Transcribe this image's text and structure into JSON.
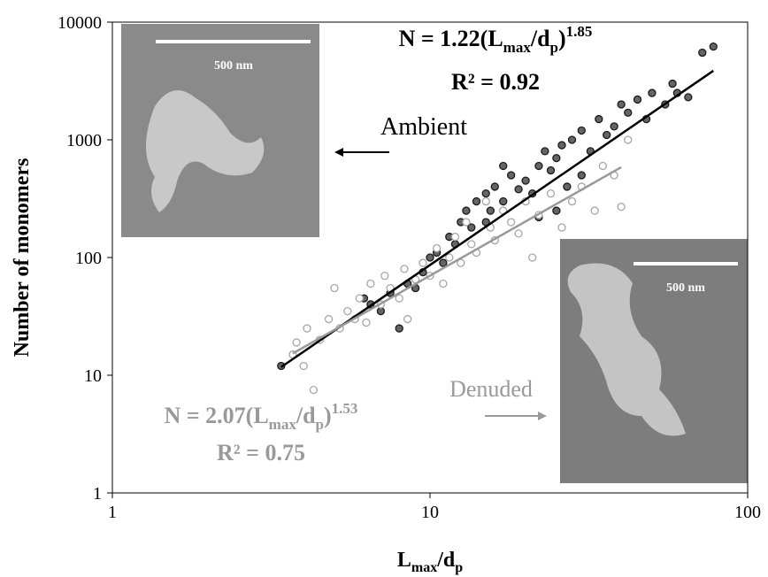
{
  "chart_data": {
    "type": "scatter",
    "y_label": "Number of monomers",
    "x_label": [
      "L",
      "max",
      "/d",
      "p"
    ],
    "log_x": true,
    "log_y": true,
    "xlim": [
      1,
      100
    ],
    "xticks": [
      1,
      10,
      100
    ],
    "ylim": [
      1,
      10000
    ],
    "yticks": [
      1,
      10,
      100,
      1000,
      10000
    ],
    "series": [
      {
        "name": "Ambient",
        "color": "#4a4a4a",
        "x": [
          3.4,
          6.2,
          6.5,
          7,
          7.5,
          8,
          8.5,
          9,
          9.5,
          10,
          10.5,
          11,
          11.5,
          12,
          12.5,
          13,
          13.5,
          14,
          15,
          15.5,
          16,
          17,
          18,
          19,
          20,
          21,
          22,
          23,
          24,
          25,
          26,
          27,
          28,
          30,
          32,
          34,
          36,
          38,
          40,
          42,
          45,
          48,
          50,
          55,
          58,
          60,
          65,
          72,
          78,
          25,
          22,
          30,
          17,
          15
        ],
        "values": [
          12,
          45,
          40,
          35,
          50,
          25,
          60,
          55,
          75,
          100,
          110,
          90,
          150,
          130,
          200,
          250,
          180,
          300,
          350,
          250,
          400,
          300,
          500,
          380,
          450,
          350,
          600,
          800,
          550,
          700,
          900,
          400,
          1000,
          1200,
          800,
          1500,
          1100,
          1300,
          2000,
          1700,
          2200,
          1500,
          2500,
          2000,
          3000,
          2500,
          2300,
          5500,
          6200,
          250,
          220,
          500,
          600,
          200
        ]
      },
      {
        "name": "Denuded",
        "color": "#a6a6a6",
        "x": [
          3.7,
          3.8,
          4,
          4.1,
          4.3,
          4.5,
          4.8,
          5,
          5.2,
          5.5,
          5.8,
          6,
          6.3,
          6.5,
          7,
          7.2,
          7.5,
          8,
          8.3,
          8.5,
          9,
          9.5,
          10,
          10.5,
          11,
          11.5,
          12,
          12.5,
          13,
          13.5,
          14,
          15,
          15.5,
          16,
          17,
          18,
          19,
          20,
          21,
          22,
          24,
          26,
          28,
          30,
          33,
          35,
          38,
          40,
          42
        ],
        "values": [
          15,
          19,
          12,
          25,
          7.5,
          20,
          30,
          55,
          25,
          35,
          30,
          45,
          28,
          60,
          40,
          70,
          55,
          45,
          80,
          30,
          65,
          90,
          70,
          120,
          60,
          100,
          150,
          90,
          200,
          130,
          110,
          300,
          180,
          140,
          250,
          200,
          160,
          300,
          100,
          230,
          350,
          180,
          300,
          400,
          250,
          600,
          500,
          270,
          1000
        ]
      }
    ],
    "equation": [
      "N = ",
      "(L",
      "max",
      "/d",
      "p",
      ")"
    ],
    "r2_label": "R² = ",
    "fits": [
      {
        "a": 1.22,
        "b": 1.85,
        "r2": 0.92,
        "x_range": [
          3.4,
          78
        ],
        "color": "#000000"
      },
      {
        "a": 2.07,
        "b": 1.53,
        "r2": 0.75,
        "x_range": [
          3.7,
          40
        ],
        "color": "#999999"
      }
    ],
    "scale_bar_label": "500 nm"
  }
}
